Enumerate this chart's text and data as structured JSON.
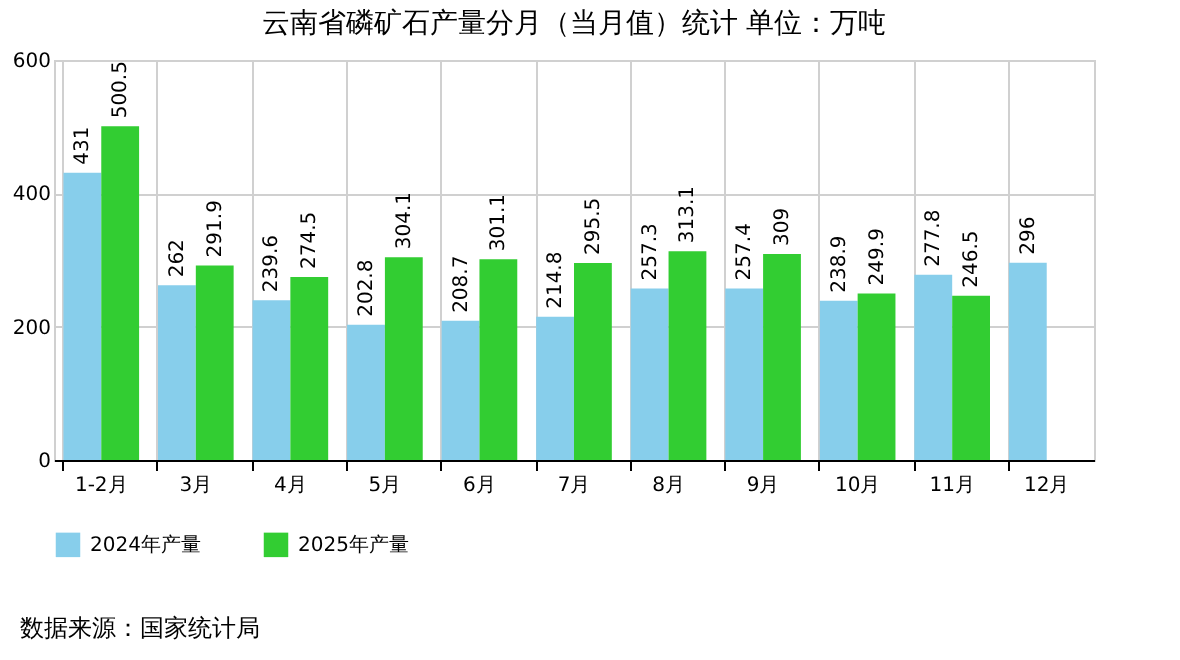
{
  "chart_data": {
    "type": "bar",
    "title": "云南省磷矿石产量分月（当月值）统计  单位：万吨",
    "categories": [
      "1-2月",
      "3月",
      "4月",
      "5月",
      "6月",
      "7月",
      "8月",
      "9月",
      "10月",
      "11月",
      "12月"
    ],
    "series": [
      {
        "name": "2024年产量",
        "color": "#87ceeb",
        "values": [
          431,
          262,
          239.6,
          202.8,
          208.7,
          214.8,
          257.3,
          257.4,
          238.9,
          277.8,
          296
        ]
      },
      {
        "name": "2025年产量",
        "color": "#32cd32",
        "values": [
          500.5,
          291.9,
          274.5,
          304.1,
          301.1,
          295.5,
          313.1,
          309,
          249.9,
          246.5,
          null
        ]
      }
    ],
    "ylim": [
      0,
      600
    ],
    "yticks": [
      0,
      200,
      400,
      600
    ],
    "grid": true,
    "legend": "bottom",
    "data_labels": true,
    "annotations": [
      "数据来源：国家统计局"
    ]
  }
}
